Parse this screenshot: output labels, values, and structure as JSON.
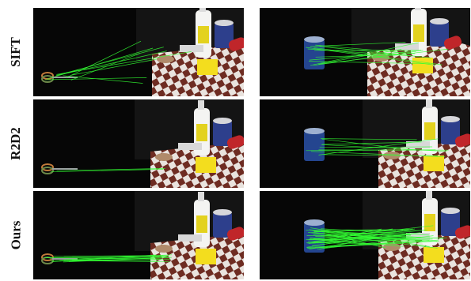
{
  "figure": {
    "rows": [
      {
        "label": "SIFT"
      },
      {
        "label": "R2D2"
      },
      {
        "label": "Ours"
      }
    ],
    "match_color": "#33ff33"
  }
}
